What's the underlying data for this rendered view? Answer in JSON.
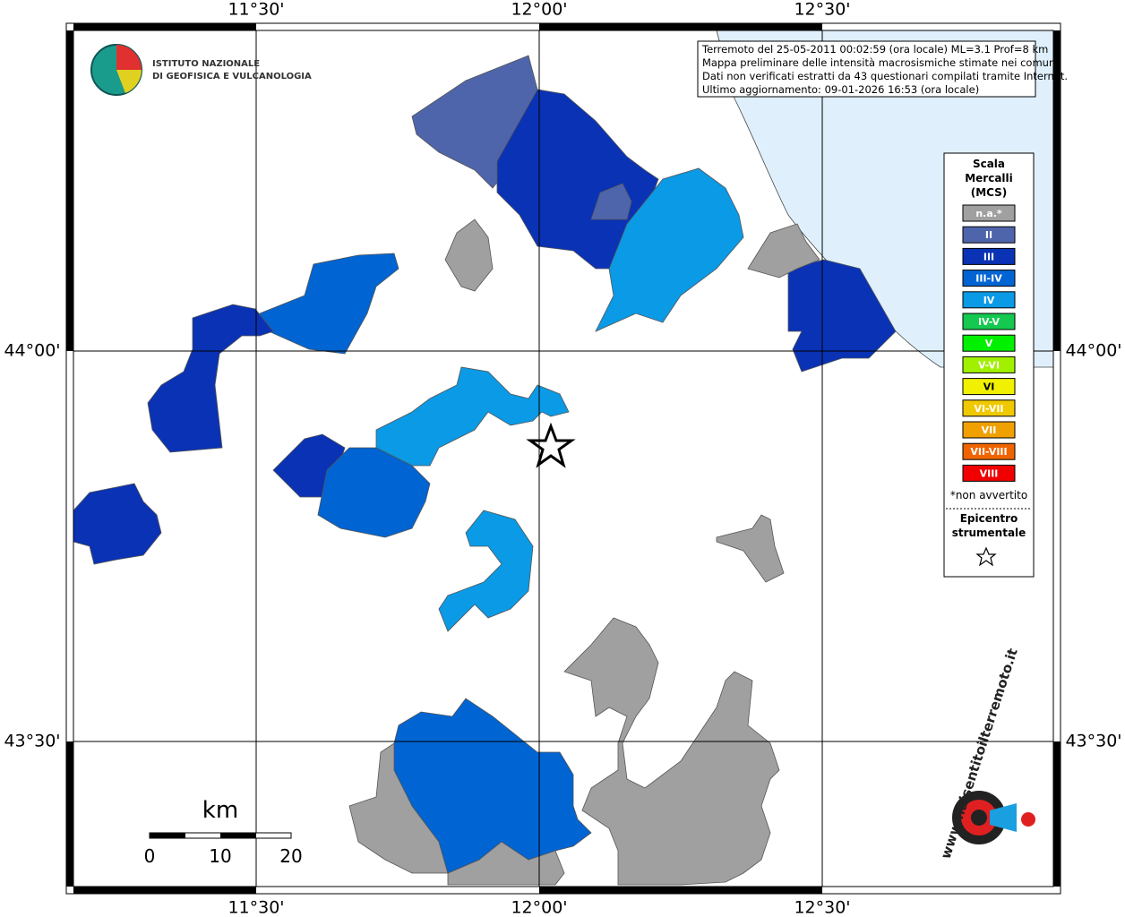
{
  "map": {
    "lon_labels": [
      "11°30'",
      "12°00'",
      "12°30'"
    ],
    "lat_labels": [
      "44°00'",
      "43°30'"
    ],
    "info": [
      "Terremoto del 25-05-2011 00:02:59 (ora locale) ML=3.1 Prof=8 km",
      "Mappa preliminare delle intensità macrosismiche stimate nei comuni",
      "Dati non verificati estratti da 43 questionari compilati tramite Internet.",
      "Ultimo aggiornamento: 09-01-2026 16:53 (ora locale)"
    ],
    "logo": [
      "ISTITUTO NAZIONALE",
      "DI GEOFISICA E VULCANOLOGIA"
    ],
    "legend": {
      "title": [
        "Scala",
        "Mercalli",
        "(MCS)"
      ],
      "classes": [
        {
          "label": "n.a.*",
          "color": "#a0a0a0"
        },
        {
          "label": "II",
          "color": "#4f65ab"
        },
        {
          "label": "III",
          "color": "#0a32b4"
        },
        {
          "label": "III-IV",
          "color": "#0064d2"
        },
        {
          "label": "IV",
          "color": "#0a9ae6"
        },
        {
          "label": "IV-V",
          "color": "#14c850"
        },
        {
          "label": "V",
          "color": "#00f000"
        },
        {
          "label": "V-VI",
          "color": "#a0f000"
        },
        {
          "label": "VI",
          "color": "#f0f000"
        },
        {
          "label": "VI-VII",
          "color": "#f0c800"
        },
        {
          "label": "VII",
          "color": "#f0a000"
        },
        {
          "label": "VII-VIII",
          "color": "#f06400"
        },
        {
          "label": "VIII",
          "color": "#f00000"
        }
      ],
      "note": "*non avvertito",
      "epicenter": [
        "Epicentro",
        "strumentale"
      ]
    },
    "scale": {
      "unit": "km",
      "labels": [
        "0",
        "10",
        "20"
      ]
    },
    "site": "www.haisentitoilterremoto.it"
  }
}
